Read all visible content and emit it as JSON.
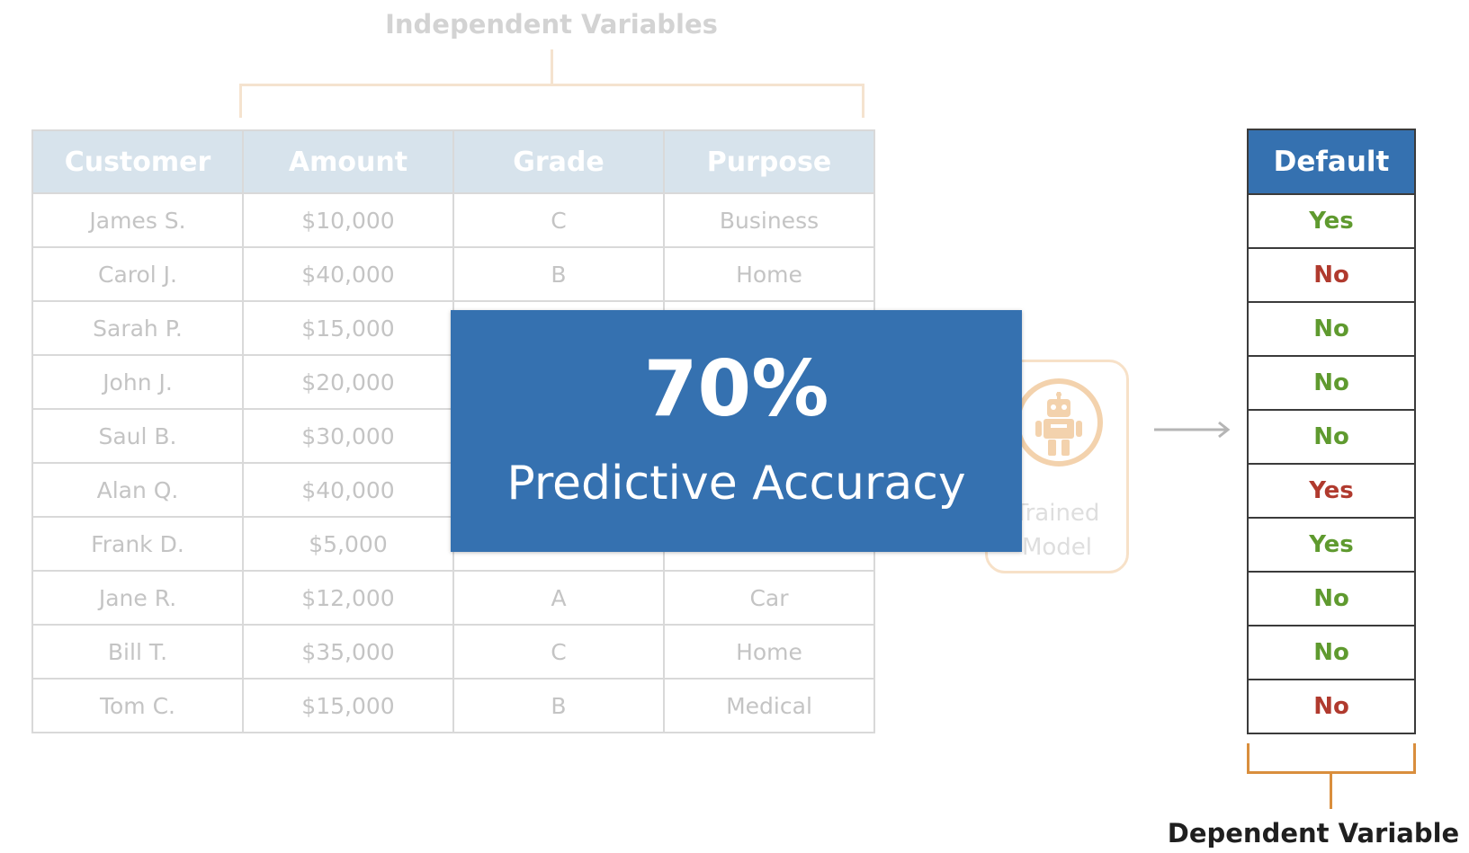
{
  "independent_label": "Independent Variables",
  "dependent_label": "Dependent Variable",
  "table": {
    "headers": [
      "Customer",
      "Amount",
      "Grade",
      "Purpose"
    ],
    "rows": [
      [
        "James S.",
        "$10,000",
        "C",
        "Business"
      ],
      [
        "Carol J.",
        "$40,000",
        "B",
        "Home"
      ],
      [
        "Sarah P.",
        "$15,000",
        "",
        ""
      ],
      [
        "John J.",
        "$20,000",
        "",
        ""
      ],
      [
        "Saul B.",
        "$30,000",
        "",
        ""
      ],
      [
        "Alan Q.",
        "$40,000",
        "",
        ""
      ],
      [
        "Frank D.",
        "$5,000",
        "",
        ""
      ],
      [
        "Jane R.",
        "$12,000",
        "A",
        "Car"
      ],
      [
        "Bill T.",
        "$35,000",
        "C",
        "Home"
      ],
      [
        "Tom C.",
        "$15,000",
        "B",
        "Medical"
      ]
    ]
  },
  "model": {
    "label_line1": "Trained",
    "label_line2": "Model",
    "icon": "robot-icon",
    "label_visible_fragment": [
      "rained",
      "Model"
    ]
  },
  "default_column": {
    "header": "Default",
    "values": [
      {
        "text": "Yes",
        "color": "#5f9a2f"
      },
      {
        "text": "No",
        "color": "#b03a2e"
      },
      {
        "text": "No",
        "color": "#5f9a2f"
      },
      {
        "text": "No",
        "color": "#5f9a2f"
      },
      {
        "text": "No",
        "color": "#5f9a2f"
      },
      {
        "text": "Yes",
        "color": "#b03a2e"
      },
      {
        "text": "Yes",
        "color": "#5f9a2f"
      },
      {
        "text": "No",
        "color": "#5f9a2f"
      },
      {
        "text": "No",
        "color": "#5f9a2f"
      },
      {
        "text": "No",
        "color": "#b03a2e"
      }
    ]
  },
  "overlay": {
    "value": "70%",
    "label": "Predictive Accuracy"
  },
  "colors": {
    "accent_blue": "#3571b0",
    "header_faded": "#d7e3ec",
    "bracket_orange": "#d98e3d",
    "correct_green": "#5f9a2f",
    "incorrect_red": "#b03a2e"
  }
}
